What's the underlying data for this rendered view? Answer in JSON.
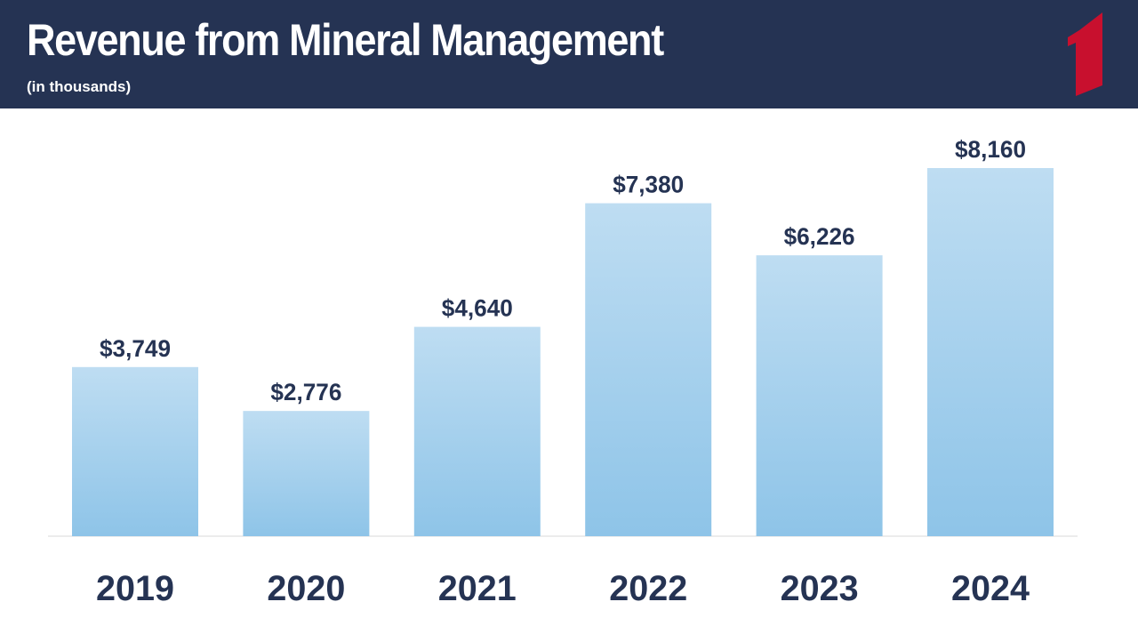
{
  "header": {
    "title": "Revenue from Mineral Management",
    "subtitle": "(in thousands)"
  },
  "colors": {
    "header_bg": "#253353",
    "bar_top": "#BEDDF2",
    "bar_bottom": "#8EC4E8",
    "logo_red": "#C8102E",
    "text_dark": "#253353"
  },
  "icons": {
    "logo": "red-numeral-one-logo"
  },
  "chart_data": {
    "type": "bar",
    "categories": [
      "2019",
      "2020",
      "2021",
      "2022",
      "2023",
      "2024"
    ],
    "values": [
      3749,
      2776,
      4640,
      7380,
      6226,
      8160
    ],
    "data_labels": [
      "$3,749",
      "$2,776",
      "$4,640",
      "$7,380",
      "$6,226",
      "$8,160"
    ],
    "title": "Revenue from Mineral Management",
    "subtitle": "(in thousands)",
    "xlabel": "",
    "ylabel": "",
    "ylim": [
      0,
      8160
    ],
    "grid": false,
    "legend": "none"
  }
}
